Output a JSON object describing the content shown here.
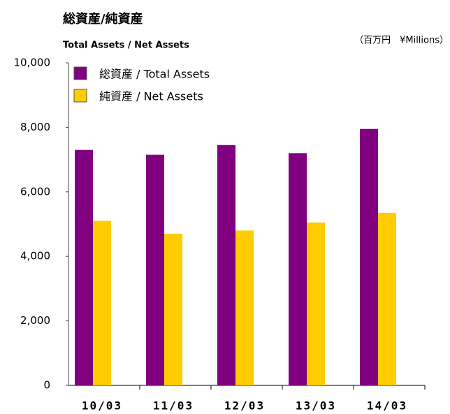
{
  "chart_data": {
    "type": "bar",
    "title": "総資産/純資産",
    "subtitle": "Total Assets / Net Assets",
    "unit": "（百万円　¥Millions）",
    "categories": [
      "10/03",
      "11/03",
      "12/03",
      "13/03",
      "14/03"
    ],
    "series": [
      {
        "name": "総資産 / Total Assets",
        "color": "#800080",
        "values": [
          7300,
          7150,
          7450,
          7200,
          7950
        ]
      },
      {
        "name": "純資産 / Net Assets",
        "color": "#ffcc00",
        "values": [
          5100,
          4700,
          4800,
          5050,
          5350
        ]
      }
    ],
    "ylim": [
      0,
      10000
    ],
    "yticks": [
      0,
      {
        "value": 2000,
        "label": "2,000"
      },
      {
        "value": 4000,
        "label": "4,000"
      },
      {
        "value": 6000,
        "label": "6,000"
      },
      {
        "value": 8000,
        "label": "8,000"
      },
      {
        "value": 10000,
        "label": "10,000"
      }
    ],
    "legend": "top-left"
  }
}
